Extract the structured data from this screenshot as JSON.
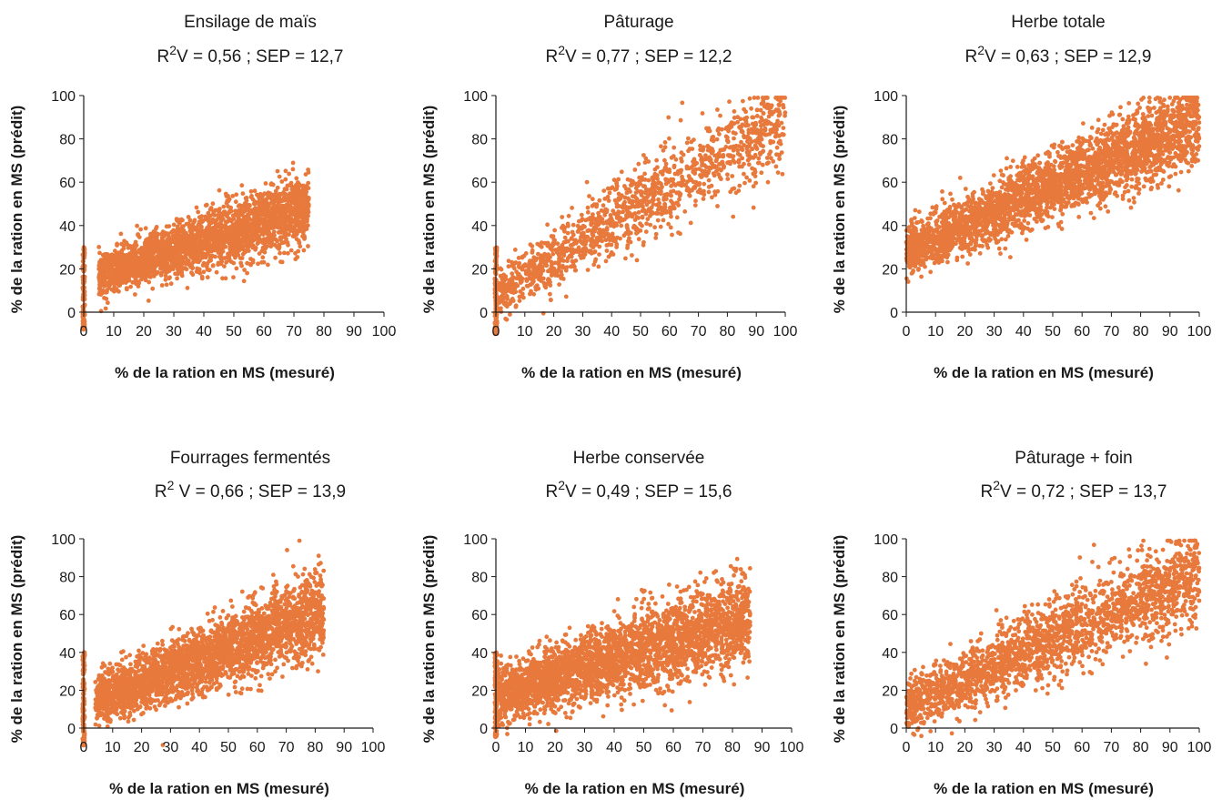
{
  "figure": {
    "point_color": "#E8793C",
    "axis_color": "#1a1a1a"
  },
  "chart_data": [
    {
      "type": "scatter",
      "title": "Ensilage de maïs",
      "subtitle": {
        "r2_prefix": "R",
        "r2_sup": "2",
        "r2_text": "V = 0,56 ; SEP = 12,7"
      },
      "xlabel": "% de la ration en MS (mesuré)",
      "ylabel": "% de la ration en MS (prédit)",
      "xlim": [
        0,
        100
      ],
      "ylim": [
        0,
        100
      ],
      "xticks": [
        "0",
        "10",
        "20",
        "30",
        "40",
        "50",
        "60",
        "70",
        "80",
        "90",
        "100"
      ],
      "yticks": [
        "0",
        "20",
        "40",
        "60",
        "80",
        "100"
      ],
      "grid": false,
      "trend": [
        [
          5,
          17
        ],
        [
          75,
          48
        ]
      ],
      "spread_y": 6,
      "x_range": [
        5,
        75
      ],
      "zero_cluster": [
        -8,
        30
      ],
      "n_points": 2600
    },
    {
      "type": "scatter",
      "title": "Pâturage",
      "subtitle": {
        "r2_prefix": "R",
        "r2_sup": "2",
        "r2_text": "V = 0,77 ; SEP = 12,2"
      },
      "xlabel": "% de la ration en MS (mesuré)",
      "ylabel": "% de la ration en MS (prédit)",
      "xlim": [
        0,
        100
      ],
      "ylim": [
        0,
        100
      ],
      "xticks": [
        "0",
        "10",
        "20",
        "30",
        "40",
        "50",
        "60",
        "70",
        "80",
        "90",
        "100"
      ],
      "yticks": [
        "0",
        "20",
        "40",
        "60",
        "80",
        "100"
      ],
      "grid": false,
      "trend": [
        [
          2,
          10
        ],
        [
          100,
          90
        ]
      ],
      "spread_y": 8,
      "x_range": [
        1,
        100
      ],
      "zero_cluster": [
        -10,
        30
      ],
      "n_points": 1400
    },
    {
      "type": "scatter",
      "title": "Herbe totale",
      "subtitle": {
        "r2_prefix": "R",
        "r2_sup": "2",
        "r2_text": "V = 0,63 ; SEP = 12,9"
      },
      "xlabel": "% de la ration en MS (mesuré)",
      "ylabel": "% de la ration en MS (prédit)",
      "xlim": [
        0,
        100
      ],
      "ylim": [
        0,
        100
      ],
      "xticks": [
        "0",
        "10",
        "20",
        "30",
        "40",
        "50",
        "60",
        "70",
        "80",
        "90",
        "100"
      ],
      "yticks": [
        "0",
        "20",
        "40",
        "60",
        "80",
        "100"
      ],
      "grid": false,
      "trend": [
        [
          3,
          30
        ],
        [
          100,
          88
        ]
      ],
      "spread_y": 7,
      "x_range": [
        0,
        100
      ],
      "zero_cluster": null,
      "n_points": 3200
    },
    {
      "type": "scatter",
      "title": "Fourrages fermentés",
      "subtitle": {
        "r2_prefix": "R",
        "r2_sup": "2",
        "r2_text": " V = 0,66 ; SEP = 13,9"
      },
      "xlabel": "% de la ration en MS (mesuré)",
      "ylabel": "% de la ration en MS (prédit)",
      "xlim": [
        0,
        100
      ],
      "ylim": [
        0,
        100
      ],
      "xticks": [
        "0",
        "10",
        "20",
        "30",
        "40",
        "50",
        "60",
        "70",
        "80",
        "90",
        "100"
      ],
      "yticks": [
        "0",
        "20",
        "40",
        "60",
        "80",
        "100"
      ],
      "grid": false,
      "trend": [
        [
          5,
          15
        ],
        [
          83,
          62
        ]
      ],
      "spread_y": 8,
      "x_range": [
        4,
        83
      ],
      "zero_cluster": [
        -10,
        40
      ],
      "n_points": 2800
    },
    {
      "type": "scatter",
      "title": "Herbe conservée",
      "subtitle": {
        "r2_prefix": "R",
        "r2_sup": "2",
        "r2_text": "V = 0,49 ; SEP = 15,6"
      },
      "xlabel": "% de la ration en MS (mesuré)",
      "ylabel": "% de la ration en MS (prédit)",
      "xlim": [
        0,
        100
      ],
      "ylim": [
        0,
        100
      ],
      "xticks": [
        "0",
        "10",
        "20",
        "30",
        "40",
        "50",
        "60",
        "70",
        "80",
        "90",
        "100"
      ],
      "yticks": [
        "0",
        "20",
        "40",
        "60",
        "80",
        "100"
      ],
      "grid": false,
      "trend": [
        [
          1,
          18
        ],
        [
          86,
          58
        ]
      ],
      "spread_y": 9,
      "x_range": [
        0,
        86
      ],
      "zero_cluster": [
        -5,
        40
      ],
      "n_points": 3000
    },
    {
      "type": "scatter",
      "title": "Pâturage + foin",
      "subtitle": {
        "r2_prefix": "R",
        "r2_sup": "2",
        "r2_text": "V = 0,72 ; SEP = 13,7"
      },
      "xlabel": "% de la ration en MS (mesuré)",
      "ylabel": "% de la ration en MS (prédit)",
      "xlim": [
        0,
        100
      ],
      "ylim": [
        0,
        100
      ],
      "xticks": [
        "0",
        "10",
        "20",
        "30",
        "40",
        "50",
        "60",
        "70",
        "80",
        "90",
        "100"
      ],
      "yticks": [
        "0",
        "20",
        "40",
        "60",
        "80",
        "100"
      ],
      "grid": false,
      "trend": [
        [
          1,
          12
        ],
        [
          100,
          82
        ]
      ],
      "spread_y": 9,
      "x_range": [
        0,
        100
      ],
      "zero_cluster": null,
      "n_points": 2200
    }
  ]
}
